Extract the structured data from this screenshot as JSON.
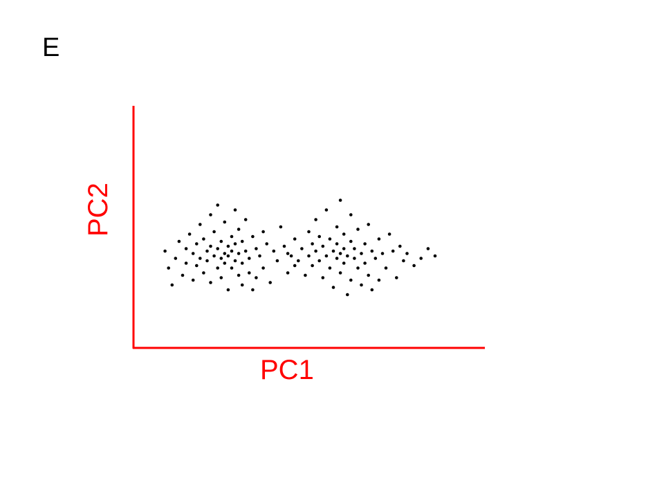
{
  "panel_label": "E",
  "chart_data": {
    "type": "scatter",
    "title": "",
    "xlabel": "PC1",
    "ylabel": "PC2",
    "xlim": [
      0,
      100
    ],
    "ylim": [
      0,
      100
    ],
    "grid": false,
    "ticks": false,
    "axis_color": "#ff0000",
    "point_color": "#000000",
    "points": [
      [
        9,
        40
      ],
      [
        10,
        33
      ],
      [
        11,
        26
      ],
      [
        12,
        37
      ],
      [
        13,
        44
      ],
      [
        14,
        30
      ],
      [
        15,
        41
      ],
      [
        15,
        35
      ],
      [
        16,
        47
      ],
      [
        17,
        28
      ],
      [
        17,
        39
      ],
      [
        18,
        43
      ],
      [
        18,
        34
      ],
      [
        19,
        51
      ],
      [
        19,
        37
      ],
      [
        20,
        45
      ],
      [
        20,
        31
      ],
      [
        21,
        40
      ],
      [
        21,
        36
      ],
      [
        22,
        55
      ],
      [
        22,
        42
      ],
      [
        22,
        27
      ],
      [
        23,
        38
      ],
      [
        23,
        48
      ],
      [
        24,
        33
      ],
      [
        24,
        41
      ],
      [
        24,
        59
      ],
      [
        25,
        37
      ],
      [
        25,
        44
      ],
      [
        25,
        29
      ],
      [
        26,
        39
      ],
      [
        26,
        52
      ],
      [
        26,
        35
      ],
      [
        27,
        42
      ],
      [
        27,
        24
      ],
      [
        27,
        38
      ],
      [
        28,
        46
      ],
      [
        28,
        33
      ],
      [
        28,
        40
      ],
      [
        29,
        57
      ],
      [
        29,
        36
      ],
      [
        29,
        43
      ],
      [
        30,
        30
      ],
      [
        30,
        49
      ],
      [
        30,
        39
      ],
      [
        31,
        35
      ],
      [
        31,
        44
      ],
      [
        31,
        26
      ],
      [
        32,
        40
      ],
      [
        32,
        53
      ],
      [
        33,
        37
      ],
      [
        33,
        31
      ],
      [
        34,
        46
      ],
      [
        34,
        24
      ],
      [
        35,
        41
      ],
      [
        35,
        29
      ],
      [
        36,
        38
      ],
      [
        37,
        48
      ],
      [
        37,
        33
      ],
      [
        38,
        43
      ],
      [
        39,
        27
      ],
      [
        40,
        40
      ],
      [
        41,
        36
      ],
      [
        42,
        50
      ],
      [
        43,
        42
      ],
      [
        44,
        31
      ],
      [
        45,
        38
      ],
      [
        46,
        34
      ],
      [
        44,
        39
      ],
      [
        46,
        45
      ],
      [
        47,
        36
      ],
      [
        48,
        41
      ],
      [
        49,
        30
      ],
      [
        50,
        48
      ],
      [
        50,
        38
      ],
      [
        51,
        43
      ],
      [
        51,
        34
      ],
      [
        52,
        53
      ],
      [
        52,
        40
      ],
      [
        53,
        36
      ],
      [
        53,
        46
      ],
      [
        54,
        29
      ],
      [
        54,
        42
      ],
      [
        55,
        57
      ],
      [
        55,
        38
      ],
      [
        56,
        33
      ],
      [
        56,
        45
      ],
      [
        57,
        40
      ],
      [
        57,
        25
      ],
      [
        58,
        50
      ],
      [
        58,
        37
      ],
      [
        58,
        43
      ],
      [
        59,
        39
      ],
      [
        59,
        31
      ],
      [
        59,
        61
      ],
      [
        60,
        35
      ],
      [
        60,
        47
      ],
      [
        60,
        41
      ],
      [
        61,
        22
      ],
      [
        61,
        38
      ],
      [
        62,
        44
      ],
      [
        62,
        28
      ],
      [
        62,
        55
      ],
      [
        63,
        37
      ],
      [
        63,
        41
      ],
      [
        64,
        33
      ],
      [
        64,
        49
      ],
      [
        65,
        39
      ],
      [
        65,
        26
      ],
      [
        66,
        43
      ],
      [
        66,
        35
      ],
      [
        67,
        51
      ],
      [
        67,
        30
      ],
      [
        68,
        40
      ],
      [
        68,
        24
      ],
      [
        69,
        37
      ],
      [
        70,
        45
      ],
      [
        70,
        28
      ],
      [
        71,
        39
      ],
      [
        72,
        33
      ],
      [
        73,
        47
      ],
      [
        74,
        40
      ],
      [
        75,
        29
      ],
      [
        76,
        42
      ],
      [
        77,
        36
      ],
      [
        78,
        39
      ],
      [
        80,
        34
      ],
      [
        82,
        37
      ],
      [
        84,
        41
      ],
      [
        86,
        38
      ]
    ]
  }
}
